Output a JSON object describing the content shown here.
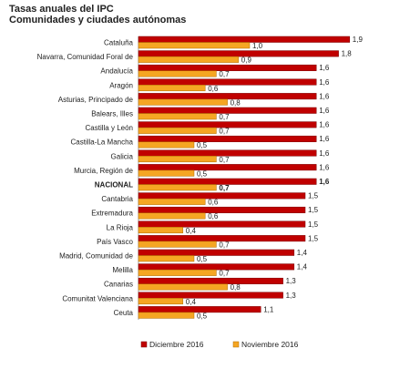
{
  "chart_data": {
    "type": "bar",
    "orientation": "horizontal",
    "title": "Tasas anuales del IPC",
    "subtitle": "Comunidades y ciudades autónomas",
    "categories": [
      "Cataluña",
      "Navarra, Comunidad Foral de",
      "Andalucía",
      "Aragón",
      "Asturias, Principado de",
      "Balears, Illes",
      "Castilla y León",
      "Castilla-La Mancha",
      "Galicia",
      "Murcia, Región de",
      "NACIONAL",
      "Cantabria",
      "Extremadura",
      "La Rioja",
      "País Vasco",
      "Madrid, Comunidad de",
      "Melilla",
      "Canarias",
      "Comunitat Valenciana",
      "Ceuta"
    ],
    "series": [
      {
        "name": "Diciembre 2016",
        "color": "#c00000",
        "values": [
          1.9,
          1.8,
          1.6,
          1.6,
          1.6,
          1.6,
          1.6,
          1.6,
          1.6,
          1.6,
          1.6,
          1.5,
          1.5,
          1.5,
          1.5,
          1.4,
          1.4,
          1.3,
          1.3,
          1.1
        ],
        "labels": [
          "1,9",
          "1,8",
          "1,6",
          "1,6",
          "1,6",
          "1,6",
          "1,6",
          "1,6",
          "1,6",
          "1,6",
          "1,6",
          "1,5",
          "1,5",
          "1,5",
          "1,5",
          "1,4",
          "1,4",
          "1,3",
          "1,3",
          "1,1"
        ]
      },
      {
        "name": "Noviembre 2016",
        "color": "#f5a623",
        "values": [
          1.0,
          0.9,
          0.7,
          0.6,
          0.8,
          0.7,
          0.7,
          0.5,
          0.7,
          0.5,
          0.7,
          0.6,
          0.6,
          0.4,
          0.7,
          0.5,
          0.7,
          0.8,
          0.4,
          0.5
        ],
        "labels": [
          "1,0",
          "0,9",
          "0,7",
          "0,6",
          "0,8",
          "0,7",
          "0,7",
          "0,5",
          "0,7",
          "0,5",
          "0,7",
          "0,6",
          "0,6",
          "0,4",
          "0,7",
          "0,5",
          "0,7",
          "0,8",
          "0,4",
          "0,5"
        ]
      }
    ],
    "highlight_category": "NACIONAL",
    "legend_position": "bottom",
    "grid": false
  }
}
